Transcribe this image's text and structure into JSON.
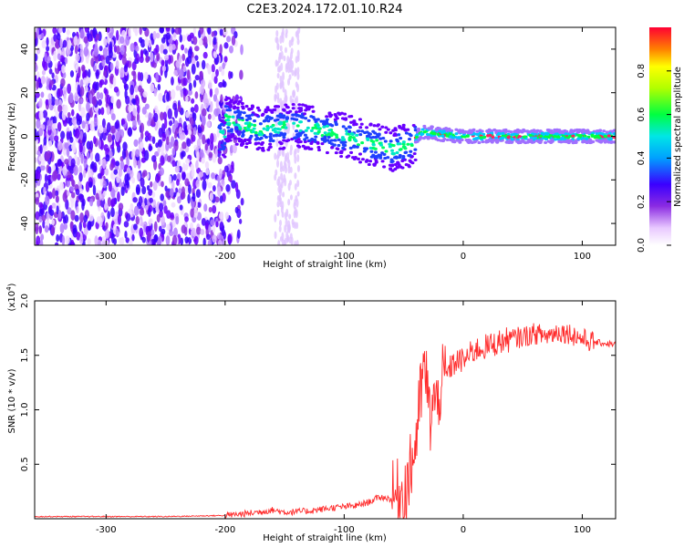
{
  "figure": {
    "title": "C2E3.2024.172.01.10.R24"
  },
  "chart_data": [
    {
      "type": "heatmap",
      "xlabel": "Height of straight line (km)",
      "ylabel": "Frequency (Hz)",
      "xlim": [
        -360,
        128
      ],
      "ylim": [
        -50,
        50
      ],
      "xticks": [
        "-300",
        "-200",
        "-100",
        "0",
        "100"
      ],
      "yticks": [
        "40",
        "20",
        "0",
        "-20",
        "-40"
      ],
      "colorbar": {
        "label": "Normalized spectral amplitude",
        "range": [
          0,
          1
        ],
        "ticks": [
          "0.0",
          "0.2",
          "0.4",
          "0.6",
          "0.8"
        ]
      },
      "signal_trace": {
        "x": [
          -200,
          -170,
          -140,
          -110,
          -80,
          -60,
          -45,
          -35,
          -20,
          0,
          50,
          100,
          128
        ],
        "y": [
          8,
          3,
          5,
          2,
          -3,
          -6,
          -4,
          2,
          1,
          0,
          0,
          0,
          0
        ]
      }
    },
    {
      "type": "line",
      "xlabel": "Height of straight line (km)",
      "ylabel": "SNR (10 * v/v)",
      "scale_note": "(x10",
      "scale_exp": "4",
      "xlim": [
        -360,
        128
      ],
      "ylim": [
        0,
        2.0
      ],
      "xticks": [
        "-300",
        "-200",
        "-100",
        "0",
        "100"
      ],
      "yticks": [
        "2.0",
        "1.5",
        "1.0",
        "0.5"
      ],
      "color": "#ff2a2a",
      "series": [
        {
          "x": [
            -360,
            -300,
            -250,
            -200,
            -180,
            -160,
            -150,
            -130,
            -110,
            -90,
            -80,
            -70,
            -60,
            -50,
            -45,
            -40,
            -35,
            -32,
            -28,
            -25,
            -22,
            -20,
            -15,
            -10,
            -5,
            0,
            10,
            20,
            30,
            40,
            50,
            60,
            70,
            80,
            90,
            100,
            110,
            128
          ],
          "values": [
            0.02,
            0.02,
            0.02,
            0.03,
            0.05,
            0.08,
            0.06,
            0.07,
            0.1,
            0.12,
            0.15,
            0.2,
            0.18,
            0.25,
            0.4,
            0.7,
            1.2,
            1.4,
            0.9,
            1.1,
            1.0,
            1.2,
            1.3,
            1.4,
            1.45,
            1.45,
            1.55,
            1.58,
            1.62,
            1.65,
            1.67,
            1.7,
            1.68,
            1.72,
            1.7,
            1.65,
            1.62,
            1.6
          ]
        }
      ]
    }
  ]
}
